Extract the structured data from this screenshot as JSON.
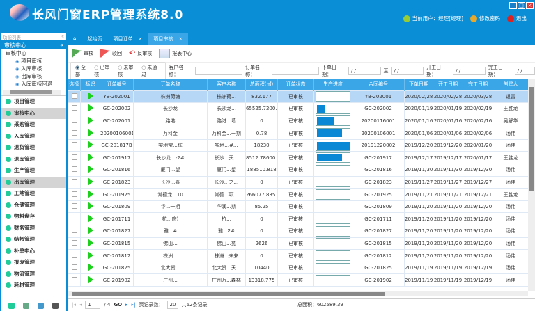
{
  "app": {
    "title": "长风门窗ERP管理系统8.0",
    "user": "当前用户：经理[经理]",
    "change_password": "修改密码",
    "logout": "退出",
    "win": [
      "–",
      "□",
      "×"
    ]
  },
  "sidebar": {
    "list_title": "功能列表",
    "pin": "«",
    "section": "审核中心",
    "collapse": "«",
    "tree_root": "审核中心",
    "tree": [
      "项目审核",
      "入库审核",
      "出库审核",
      "入库审核回退"
    ],
    "menu": [
      {
        "label": "项目管理"
      },
      {
        "label": "审核中心",
        "selected": true
      },
      {
        "label": "采购管理"
      },
      {
        "label": "入库管理"
      },
      {
        "label": "退货管理"
      },
      {
        "label": "退库管理"
      },
      {
        "label": "生产管理"
      },
      {
        "label": "出库管理",
        "selected": true
      },
      {
        "label": "工地管理"
      },
      {
        "label": "仓储管理"
      },
      {
        "label": "物料盘存"
      },
      {
        "label": "财务管理"
      },
      {
        "label": "结帐管理"
      },
      {
        "label": "补单中心"
      },
      {
        "label": "报废管理"
      },
      {
        "label": "物流管理"
      },
      {
        "label": "耗材管理"
      }
    ]
  },
  "tabs": [
    {
      "label": "起始页"
    },
    {
      "label": "项目订单",
      "close": "×"
    },
    {
      "label": "项目审核",
      "close": "×",
      "active": true
    }
  ],
  "toolbar": {
    "approve": "审核",
    "reject": "驳回",
    "unapprove": "反审核",
    "report": "报表中心"
  },
  "filter": {
    "radios": [
      "全部",
      "已审核",
      "未审核",
      "未通过"
    ],
    "selected": "全部",
    "customer_label": "客户名称：",
    "order_label": "订单名称：",
    "order_date_label": "下单日期：",
    "to_label": "至",
    "start_label": "开工日期：",
    "finish_label": "完工日期：",
    "date_placeholder": "/ /"
  },
  "table": {
    "columns": [
      "选择",
      "标识",
      "订单编号",
      "订单名称",
      "客户名称",
      "总面积(㎡)",
      "订单状态",
      "生产进度",
      "合同编号",
      "下单日期",
      "开工日期",
      "完工日期",
      "创建人"
    ],
    "rows": [
      [
        "YB-202001",
        "株洲荷塘",
        "株洲荷...",
        "832.177",
        "已审核",
        0,
        "YB-202001",
        "2020/02/28",
        "2020/02/28",
        "2020/03/28",
        "谌雷"
      ],
      [
        "GC-202002",
        "长沙龙",
        "长沙龙...",
        "65525.7200...",
        "已审核",
        25,
        "GC-202002",
        "2020/01/19",
        "2020/01/19",
        "2020/02/19",
        "王胜龙"
      ],
      [
        "GC-202001",
        "路港",
        "路港...墙",
        "0",
        "已审核",
        50,
        "20200116001",
        "2020/01/16",
        "2020/01/16",
        "2020/02/16",
        "吴解华"
      ],
      [
        "20200106001",
        "万科金",
        "万科金...一期",
        "0.78",
        "已审核",
        75,
        "20200106001",
        "2020/01/06",
        "2020/01/06",
        "2020/02/06",
        "汤伟"
      ],
      [
        "GC-201817B",
        "实地常...栋",
        "实地...#...",
        "18230",
        "已审核",
        100,
        "20191220002",
        "2019/12/20",
        "2019/12/20",
        "2020/01/20",
        "汤伟"
      ],
      [
        "GC-201917",
        "长沙龙...-2#",
        "长沙...天...",
        "8512.78600...",
        "已审核",
        75,
        "GC-201917",
        "2019/12/17",
        "2019/12/17",
        "2020/01/17",
        "王胜龙"
      ],
      [
        "GC-201816",
        "厦门...望",
        "厦门...望",
        "188510.818",
        "已审核",
        0,
        "GC-201816",
        "2019/11/30",
        "2019/11/30",
        "2019/12/30",
        "汤伟"
      ],
      [
        "GC-201823",
        "长沙...喜",
        "长沙...之...",
        "0",
        "已审核",
        0,
        "GC-201823",
        "2019/11/27",
        "2019/11/27",
        "2019/12/27",
        "汤伟"
      ],
      [
        "GC-201925",
        "常德龙...10",
        "常德...项...",
        "266077.835...",
        "已审核",
        0,
        "GC-201925",
        "2019/11/21",
        "2019/11/21",
        "2019/12/21",
        "王胜龙"
      ],
      [
        "GC-201809",
        "华...一期",
        "华润...期",
        "85.25",
        "已审核",
        0,
        "GC-201809",
        "2019/11/20",
        "2019/11/20",
        "2019/12/20",
        "汤伟"
      ],
      [
        "GC-201711",
        "杭...府)",
        "杭...",
        "0",
        "已审核",
        0,
        "GC-201711",
        "2019/11/20",
        "2019/11/20",
        "2019/12/20",
        "汤伟"
      ],
      [
        "GC-201827",
        "雅...#",
        "雅...2#",
        "0",
        "已审核",
        0,
        "GC-201827",
        "2019/11/20",
        "2019/11/20",
        "2019/12/20",
        "汤伟"
      ],
      [
        "GC-201815",
        "佛山...",
        "佛山...苑",
        "2626",
        "已审核",
        0,
        "GC-201815",
        "2019/11/20",
        "2019/11/20",
        "2019/12/20",
        "汤伟"
      ],
      [
        "GC-201812",
        "株洲...",
        "株洲...未来",
        "0",
        "已审核",
        0,
        "GC-201812",
        "2019/11/20",
        "2019/11/20",
        "2019/12/20",
        "汤伟"
      ],
      [
        "GC-201825",
        "北大资...",
        "北大资...天...",
        "10440",
        "已审核",
        0,
        "GC-201825",
        "2019/11/19",
        "2019/11/19",
        "2019/12/19",
        "汤伟"
      ],
      [
        "GC-201902",
        "广州...",
        "广州万...森林",
        "13318.775",
        "已审核",
        0,
        "GC-201902",
        "2019/11/19",
        "2019/11/19",
        "2019/12/19",
        "汤伟"
      ]
    ]
  },
  "pager": {
    "page": "1",
    "total_pages": "/ 4",
    "go": "GO",
    "page_size_label": "页记录数：",
    "page_size": "20",
    "total_records": "共62条记录",
    "total_area": "总面积：602589.39"
  },
  "colors": {
    "brand": "#0a8fd6",
    "header_row": "#3aa6e8",
    "selected_row": "#b7d7f6",
    "progress": "#0a88d6",
    "flag_icon": "#1ed01e"
  }
}
